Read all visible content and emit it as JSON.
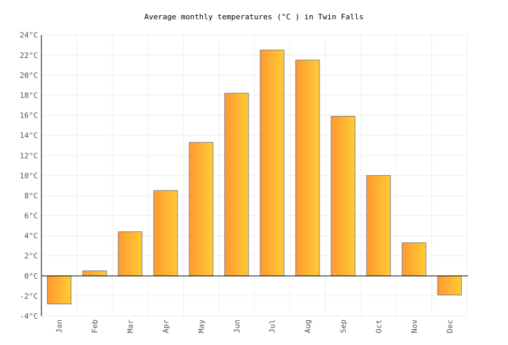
{
  "chart_data": {
    "type": "bar",
    "title": "Average monthly temperatures (°C ) in Twin Falls",
    "xlabel": "",
    "ylabel": "",
    "categories": [
      "Jan",
      "Feb",
      "Mar",
      "Apr",
      "May",
      "Jun",
      "Jul",
      "Aug",
      "Sep",
      "Oct",
      "Nov",
      "Dec"
    ],
    "values": [
      -2.8,
      0.5,
      4.4,
      8.5,
      13.3,
      18.2,
      22.5,
      21.5,
      15.9,
      10.0,
      3.3,
      -1.9
    ],
    "ylim": [
      -4,
      24
    ],
    "yticks": [
      -4,
      -2,
      0,
      2,
      4,
      6,
      8,
      10,
      12,
      14,
      16,
      18,
      20,
      22,
      24
    ],
    "ytick_unit": "°C",
    "grid": true,
    "colors": {
      "bar_left": "#ff9933",
      "bar_right": "#ffcc33",
      "bar_stroke": "#808080",
      "grid": "#eeeeee"
    }
  }
}
